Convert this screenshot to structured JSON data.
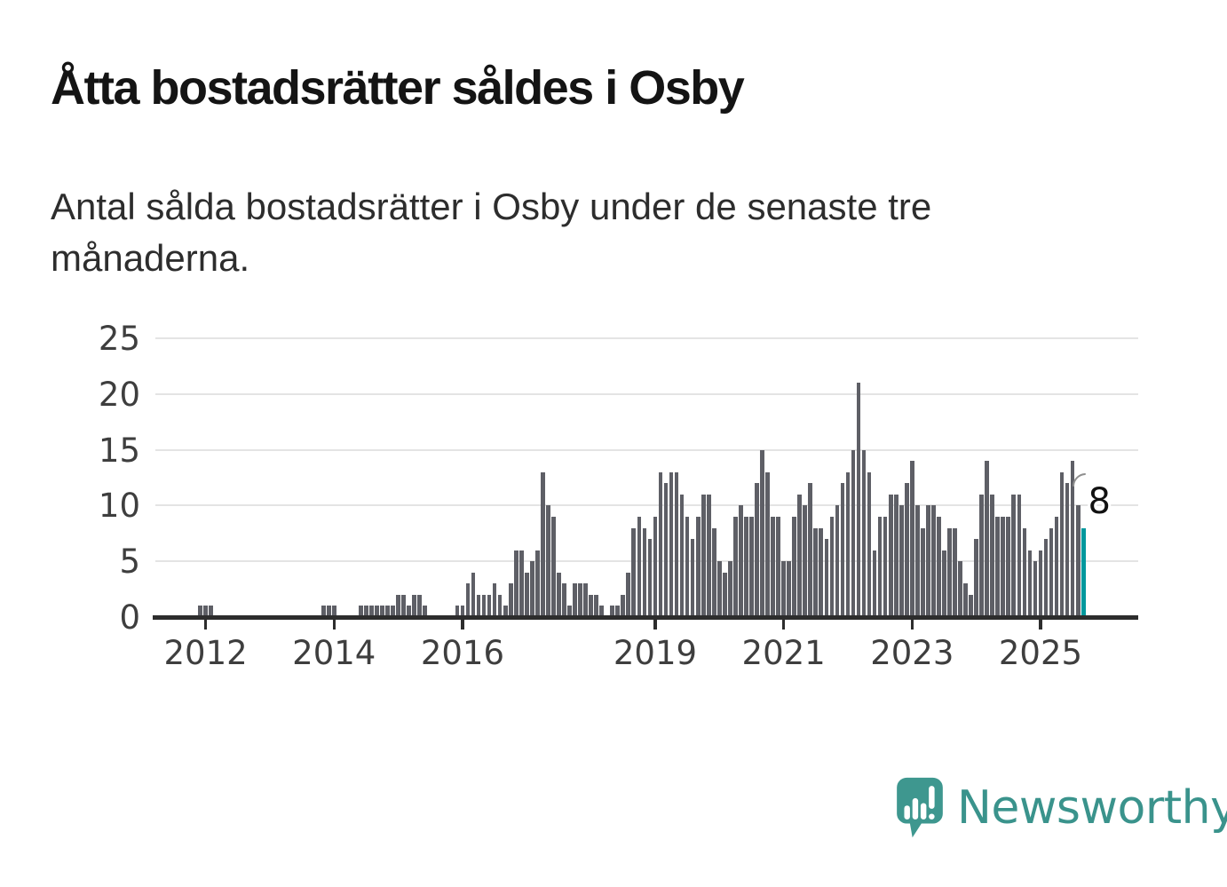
{
  "title": "Åtta bostadsrätter såldes i Osby",
  "subtitle_lines": [
    "Antal sålda bostadsrätter i Osby under de senaste tre",
    "månaderna."
  ],
  "branding": {
    "name": "Newsworthy",
    "icon": "speech-bubble-bar-chart-icon",
    "text_color": "#3a938c",
    "bubble_color": "#3e978f"
  },
  "colors": {
    "bar": "#5e5f66",
    "highlight_bar": "#00989d",
    "gridline": "#e4e4e4",
    "axis": "#2d2d2d",
    "tick_label": "#3e3e3e",
    "title": "#141414",
    "subtitle": "#2d2d2d",
    "annotation": "#111111"
  },
  "chart_data": {
    "type": "bar",
    "title": "Åtta bostadsrätter såldes i Osby",
    "xlabel": "",
    "ylabel": "",
    "start_month": "2011-04",
    "end_month": "2025-09",
    "frequency": "monthly",
    "values": [
      0,
      0,
      0,
      0,
      0,
      0,
      0,
      0,
      1,
      1,
      1,
      0,
      0,
      0,
      0,
      0,
      0,
      0,
      0,
      0,
      0,
      0,
      0,
      0,
      0,
      0,
      0,
      0,
      0,
      0,
      0,
      1,
      1,
      1,
      0,
      0,
      0,
      0,
      1,
      1,
      1,
      1,
      1,
      1,
      1,
      2,
      2,
      1,
      2,
      2,
      1,
      0,
      0,
      0,
      0,
      0,
      1,
      1,
      3,
      4,
      2,
      2,
      2,
      3,
      2,
      1,
      3,
      6,
      6,
      4,
      5,
      6,
      13,
      10,
      9,
      4,
      3,
      1,
      3,
      3,
      3,
      2,
      2,
      1,
      0,
      1,
      1,
      2,
      4,
      8,
      9,
      8,
      7,
      9,
      13,
      12,
      13,
      13,
      11,
      9,
      7,
      9,
      11,
      11,
      8,
      5,
      4,
      5,
      9,
      10,
      9,
      9,
      12,
      15,
      13,
      9,
      9,
      5,
      5,
      9,
      11,
      10,
      12,
      8,
      8,
      7,
      9,
      10,
      12,
      13,
      15,
      21,
      15,
      13,
      6,
      9,
      9,
      11,
      11,
      10,
      12,
      14,
      10,
      8,
      10,
      10,
      9,
      6,
      8,
      8,
      5,
      3,
      2,
      7,
      11,
      14,
      11,
      9,
      9,
      9,
      11,
      11,
      8,
      6,
      5,
      6,
      7,
      8,
      9,
      13,
      12,
      14,
      10,
      8
    ],
    "ylim": [
      0,
      25
    ],
    "yticks": [
      0,
      5,
      10,
      15,
      20,
      25
    ],
    "xtick_years": [
      2012,
      2014,
      2016,
      2019,
      2021,
      2023,
      2025
    ],
    "grid": true,
    "legend": "none",
    "highlight_last_bar": true,
    "last_bar_value": 8,
    "last_bar_label": "8"
  }
}
